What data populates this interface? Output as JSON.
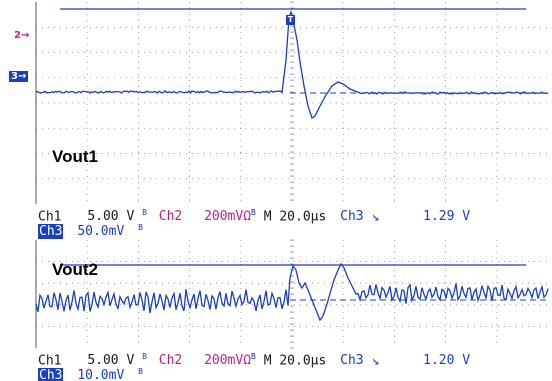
{
  "colors": {
    "ch1": "#1a1a1a",
    "ch2": "#c0208a",
    "ch3": "#1a3fbf",
    "grid": "#8a8a8a",
    "background": "#ffffff"
  },
  "top": {
    "label": "Vout1",
    "marker_ch2": "2→",
    "marker_ch3": "3→",
    "trigger_marker": "T",
    "readout": {
      "ch1_name": "Ch1",
      "ch1_scale": "5.00 V",
      "bw1": "B",
      "ch2_name": "Ch2",
      "ch2_scale": "200mVΩ",
      "bw2": "B",
      "time_label": "M 20.0µs",
      "trig_ch": "Ch3",
      "trig_slope": "↘",
      "trig_level": "1.29 V",
      "ch3_name": "Ch3",
      "ch3_scale": "50.0mV",
      "bw3": "B"
    }
  },
  "bottom": {
    "label": "Vout2",
    "readout": {
      "ch1_name": "Ch1",
      "ch1_scale": "5.00 V",
      "bw1": "B",
      "ch2_name": "Ch2",
      "ch2_scale": "200mVΩ",
      "bw2": "B",
      "time_label": "M 20.0µs",
      "trig_ch": "Ch3",
      "trig_slope": "↘",
      "trig_level": "1.20 V",
      "ch3_name": "Ch3",
      "ch3_scale": "10.0mV",
      "bw3": "B"
    }
  }
}
